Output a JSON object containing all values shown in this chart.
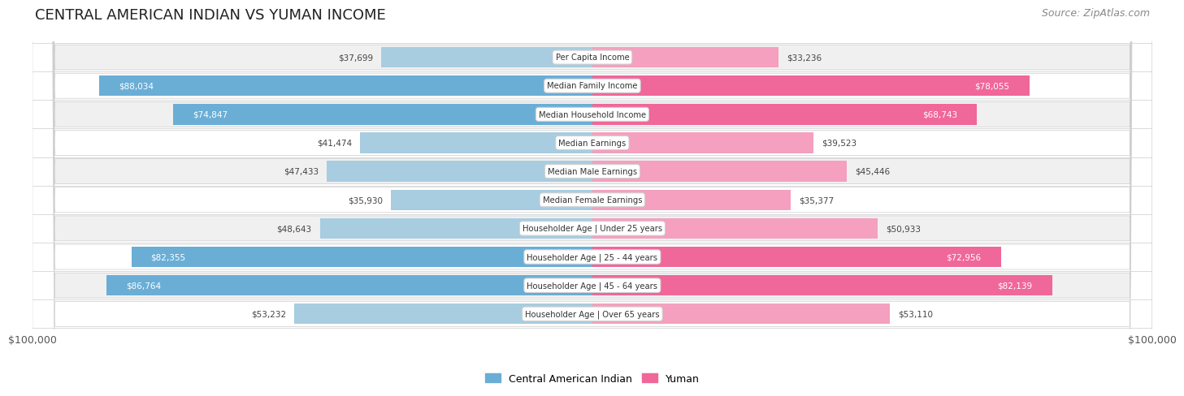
{
  "title": "CENTRAL AMERICAN INDIAN VS YUMAN INCOME",
  "source": "Source: ZipAtlas.com",
  "categories": [
    "Per Capita Income",
    "Median Family Income",
    "Median Household Income",
    "Median Earnings",
    "Median Male Earnings",
    "Median Female Earnings",
    "Householder Age | Under 25 years",
    "Householder Age | 25 - 44 years",
    "Householder Age | 45 - 64 years",
    "Householder Age | Over 65 years"
  ],
  "left_values": [
    37699,
    88034,
    74847,
    41474,
    47433,
    35930,
    48643,
    82355,
    86764,
    53232
  ],
  "right_values": [
    33236,
    78055,
    68743,
    39523,
    45446,
    35377,
    50933,
    72956,
    82139,
    53110
  ],
  "left_color_large": "#6aaed6",
  "left_color_small": "#a8cce0",
  "right_color_large": "#f0679a",
  "right_color_small": "#f4a0be",
  "left_label": "Central American Indian",
  "right_label": "Yuman",
  "max_value": 100000,
  "xlabel_left": "$100,000",
  "xlabel_right": "$100,000",
  "title_fontsize": 13,
  "source_fontsize": 9,
  "bar_height": 0.72,
  "row_bg_colors": [
    "#f0f0f0",
    "#ffffff",
    "#f0f0f0",
    "#ffffff",
    "#f0f0f0",
    "#ffffff",
    "#f0f0f0",
    "#ffffff",
    "#f0f0f0",
    "#ffffff"
  ],
  "large_threshold": 60000
}
